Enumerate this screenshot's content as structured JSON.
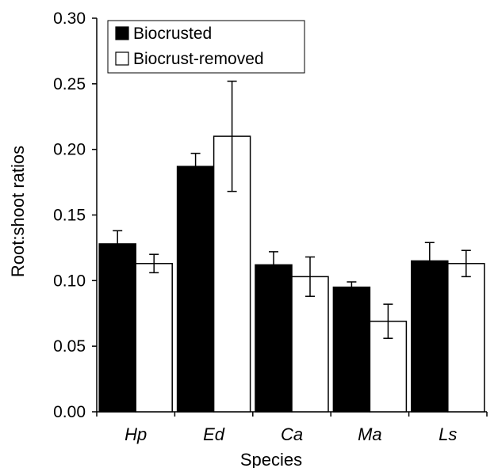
{
  "chart_data": {
    "type": "bar",
    "xlabel": "Species",
    "ylabel": "Root:shoot ratios",
    "ylim": [
      0,
      0.3
    ],
    "yticks": [
      "0.00",
      "0.05",
      "0.10",
      "0.15",
      "0.20",
      "0.25",
      "0.30"
    ],
    "categories": [
      "Hp",
      "Ed",
      "Ca",
      "Ma",
      "Ls"
    ],
    "legend_position": "top-left",
    "grid": false,
    "series": [
      {
        "name": "Biocrusted",
        "color": "#000000",
        "values": [
          0.128,
          0.187,
          0.112,
          0.095,
          0.115
        ],
        "errors": [
          0.01,
          0.01,
          0.01,
          0.004,
          0.014
        ]
      },
      {
        "name": "Biocrust-removed",
        "color": "#ffffff",
        "values": [
          0.113,
          0.21,
          0.103,
          0.069,
          0.113
        ],
        "errors": [
          0.007,
          0.042,
          0.015,
          0.013,
          0.01
        ]
      }
    ]
  }
}
